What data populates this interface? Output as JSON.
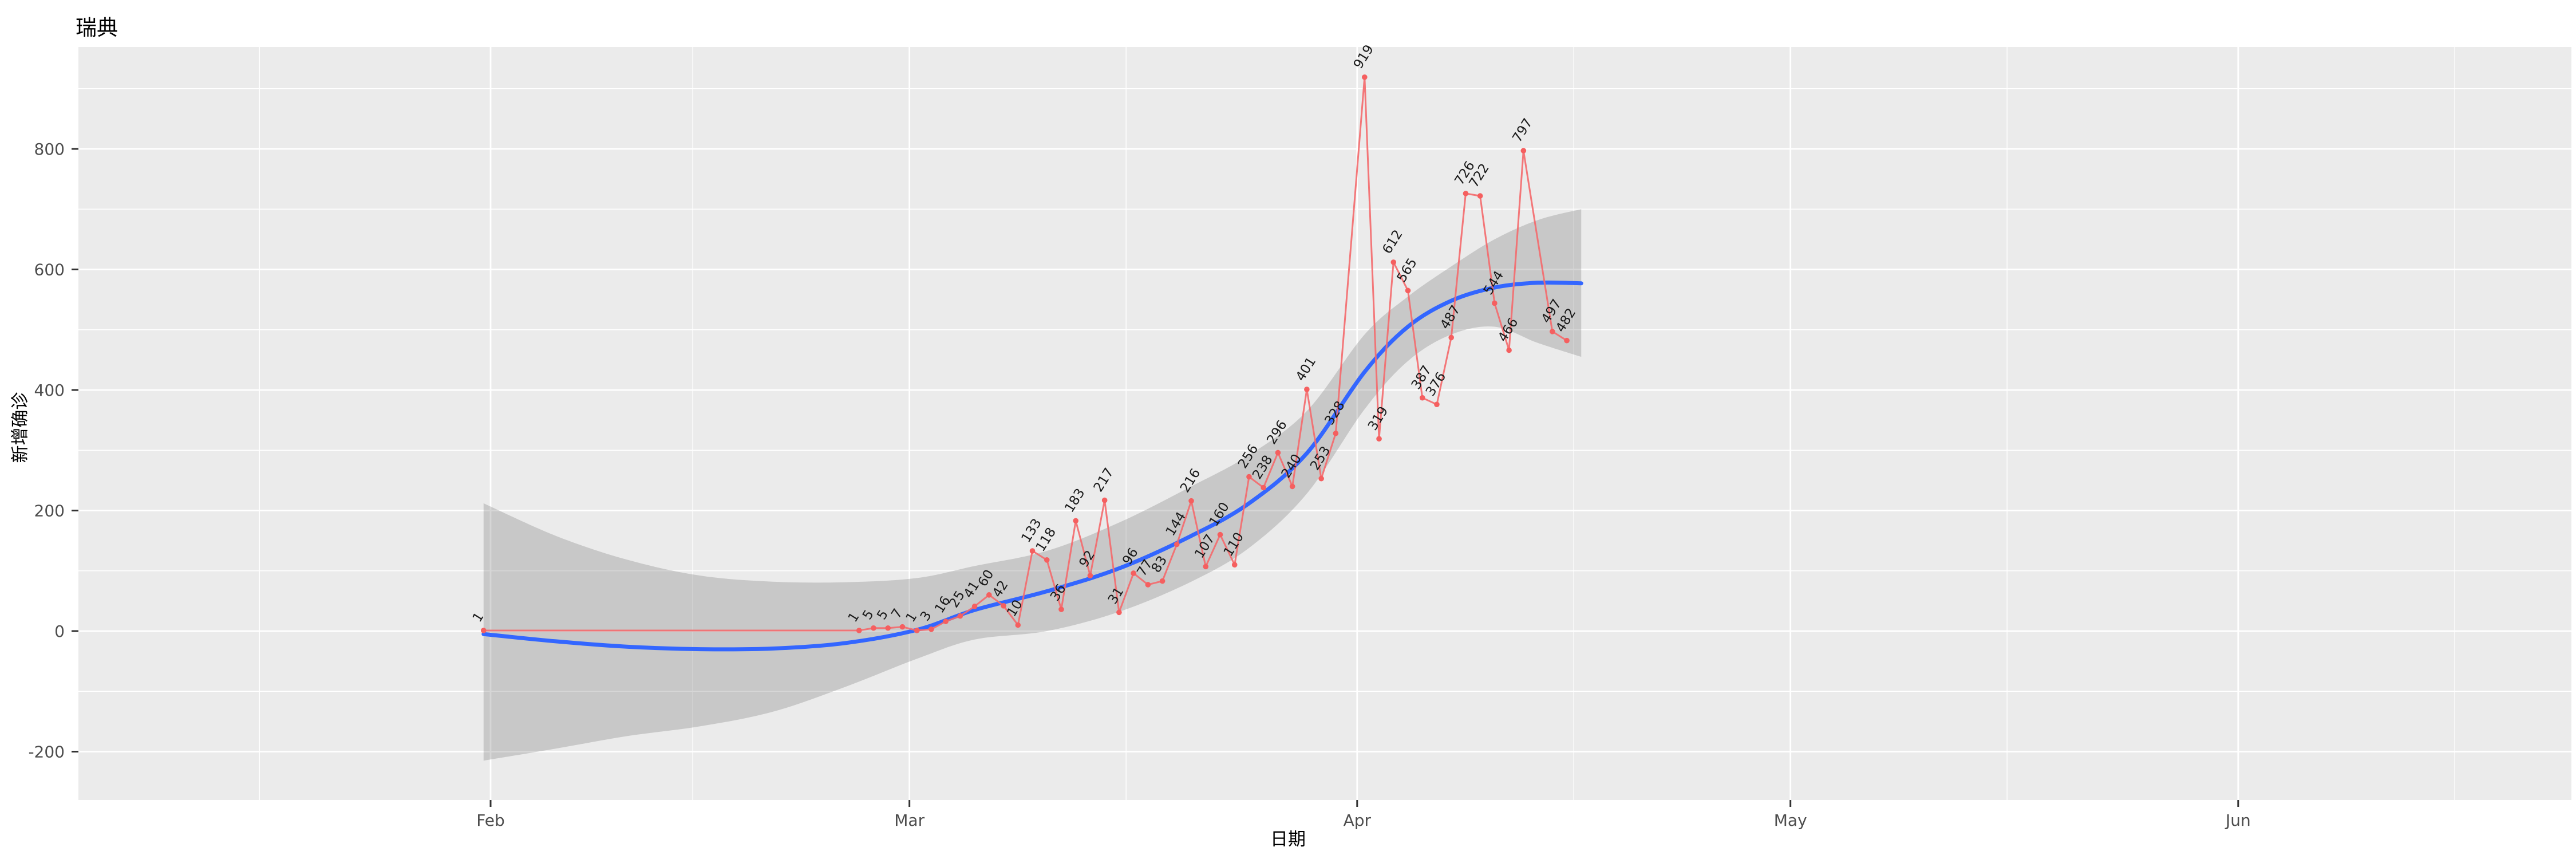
{
  "title": "瑞典",
  "axes": {
    "x_label": "日期",
    "y_label": "新增确诊"
  },
  "colors": {
    "panel_background": "#ebebeb",
    "grid_line": "#ffffff",
    "daily_line": "#f4696b",
    "daily_point": "#f55f5f",
    "point_label": "#1a1a1a",
    "smooth_line": "#3366ff",
    "confidence_band": "#787878",
    "confidence_band_opacity": 0.3,
    "tick_text": "#4d4d4d",
    "tick_mark": "#333333"
  },
  "chart_data": {
    "type": "line",
    "title": "瑞典",
    "xlabel": "日期",
    "ylabel": "新增确诊",
    "x_axis": {
      "ticks": [
        {
          "date": "2020-02-01",
          "label": "Feb"
        },
        {
          "date": "2020-03-01",
          "label": "Mar"
        },
        {
          "date": "2020-04-01",
          "label": "Apr"
        },
        {
          "date": "2020-05-01",
          "label": "May"
        },
        {
          "date": "2020-06-01",
          "label": "Jun"
        }
      ],
      "minor_tick_dates": [
        "2020-01-16",
        "2020-02-15",
        "2020-03-16",
        "2020-04-16",
        "2020-05-16",
        "2020-06-16"
      ]
    },
    "y_axis": {
      "ticks": [
        -200,
        0,
        200,
        400,
        600,
        800
      ],
      "minor_ticks": [
        -100,
        100,
        300,
        500,
        700,
        900
      ],
      "range": [
        -280,
        969
      ]
    },
    "series": [
      {
        "name": "daily_new_cases",
        "style": "line_points_labels",
        "points": [
          {
            "date": "2020-01-31",
            "value": 1
          },
          {
            "date": "2020-02-26",
            "value": 1
          },
          {
            "date": "2020-02-27",
            "value": 5
          },
          {
            "date": "2020-02-28",
            "value": 5
          },
          {
            "date": "2020-02-29",
            "value": 7
          },
          {
            "date": "2020-03-01",
            "value": 1
          },
          {
            "date": "2020-03-02",
            "value": 3
          },
          {
            "date": "2020-03-03",
            "value": 16
          },
          {
            "date": "2020-03-04",
            "value": 25
          },
          {
            "date": "2020-03-05",
            "value": 41
          },
          {
            "date": "2020-03-06",
            "value": 60
          },
          {
            "date": "2020-03-07",
            "value": 42
          },
          {
            "date": "2020-03-08",
            "value": 10
          },
          {
            "date": "2020-03-09",
            "value": 133
          },
          {
            "date": "2020-03-10",
            "value": 118
          },
          {
            "date": "2020-03-11",
            "value": 36
          },
          {
            "date": "2020-03-12",
            "value": 183
          },
          {
            "date": "2020-03-13",
            "value": 92
          },
          {
            "date": "2020-03-14",
            "value": 217
          },
          {
            "date": "2020-03-15",
            "value": 31
          },
          {
            "date": "2020-03-16",
            "value": 96
          },
          {
            "date": "2020-03-17",
            "value": 77
          },
          {
            "date": "2020-03-18",
            "value": 83
          },
          {
            "date": "2020-03-19",
            "value": 144
          },
          {
            "date": "2020-03-20",
            "value": 216
          },
          {
            "date": "2020-03-21",
            "value": 107
          },
          {
            "date": "2020-03-22",
            "value": 160
          },
          {
            "date": "2020-03-23",
            "value": 110
          },
          {
            "date": "2020-03-24",
            "value": 256
          },
          {
            "date": "2020-03-25",
            "value": 238
          },
          {
            "date": "2020-03-26",
            "value": 296
          },
          {
            "date": "2020-03-27",
            "value": 240
          },
          {
            "date": "2020-03-28",
            "value": 401
          },
          {
            "date": "2020-03-29",
            "value": 253
          },
          {
            "date": "2020-03-30",
            "value": 328
          },
          {
            "date": "2020-04-01",
            "value": 919
          },
          {
            "date": "2020-04-02",
            "value": 319
          },
          {
            "date": "2020-04-03",
            "value": 612
          },
          {
            "date": "2020-04-04",
            "value": 565
          },
          {
            "date": "2020-04-05",
            "value": 387
          },
          {
            "date": "2020-04-06",
            "value": 376
          },
          {
            "date": "2020-04-07",
            "value": 487
          },
          {
            "date": "2020-04-08",
            "value": 726
          },
          {
            "date": "2020-04-09",
            "value": 722
          },
          {
            "date": "2020-04-10",
            "value": 544
          },
          {
            "date": "2020-04-11",
            "value": 466
          },
          {
            "date": "2020-04-12",
            "value": 797
          },
          {
            "date": "2020-04-14",
            "value": 497
          },
          {
            "date": "2020-04-15",
            "value": 482
          }
        ]
      },
      {
        "name": "loess_smooth_with_confidence_band",
        "style": "smooth_band",
        "points": [
          {
            "date": "2020-01-31",
            "y": -5,
            "lo": -215,
            "hi": 212
          },
          {
            "date": "2020-02-05",
            "y": -17,
            "lo": -195,
            "hi": 158
          },
          {
            "date": "2020-02-10",
            "y": -26,
            "lo": -174,
            "hi": 118
          },
          {
            "date": "2020-02-15",
            "y": -30,
            "lo": -158,
            "hi": 92
          },
          {
            "date": "2020-02-20",
            "y": -29,
            "lo": -134,
            "hi": 82
          },
          {
            "date": "2020-02-25",
            "y": -20,
            "lo": -93,
            "hi": 81
          },
          {
            "date": "2020-03-01",
            "y": 2,
            "lo": -46,
            "hi": 88
          },
          {
            "date": "2020-03-05",
            "y": 35,
            "lo": -14,
            "hi": 108
          },
          {
            "date": "2020-03-10",
            "y": 66,
            "lo": 0,
            "hi": 133
          },
          {
            "date": "2020-03-15",
            "y": 104,
            "lo": 32,
            "hi": 180
          },
          {
            "date": "2020-03-20",
            "y": 158,
            "lo": 82,
            "hi": 240
          },
          {
            "date": "2020-03-24",
            "y": 212,
            "lo": 138,
            "hi": 292
          },
          {
            "date": "2020-03-28",
            "y": 295,
            "lo": 228,
            "hi": 365
          },
          {
            "date": "2020-04-01",
            "y": 430,
            "lo": 368,
            "hi": 492
          },
          {
            "date": "2020-04-04",
            "y": 505,
            "lo": 448,
            "hi": 555
          },
          {
            "date": "2020-04-07",
            "y": 548,
            "lo": 492,
            "hi": 605
          },
          {
            "date": "2020-04-10",
            "y": 570,
            "lo": 505,
            "hi": 650
          },
          {
            "date": "2020-04-13",
            "y": 578,
            "lo": 478,
            "hi": 682
          },
          {
            "date": "2020-04-16",
            "y": 577,
            "lo": 455,
            "hi": 700
          }
        ]
      }
    ]
  }
}
